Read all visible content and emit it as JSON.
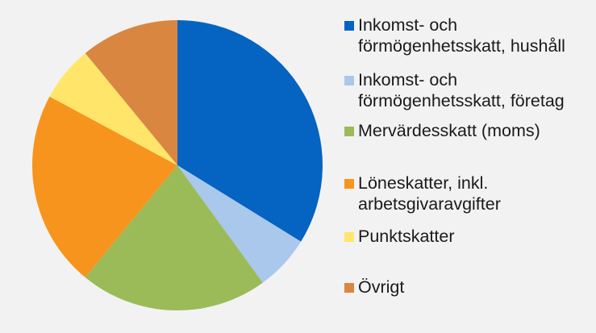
{
  "chart_data": {
    "type": "pie",
    "title": "",
    "start_angle_deg": 0,
    "direction": "clockwise",
    "legend_position": "right",
    "slices": [
      {
        "label": "Inkomst- och förmögenhetsskatt, hushåll",
        "value": 35.5,
        "color": "#0563c1"
      },
      {
        "label": "Inkomst- och förmögenhetsskatt, företag",
        "value": 6.5,
        "color": "#a9c8ec"
      },
      {
        "label": "Mervärdesskatt (moms)",
        "value": 22.0,
        "color": "#9bbb59"
      },
      {
        "label": "Löneskatter, inkl. arbetsgivaravgifter",
        "value": 23.0,
        "color": "#f7941d"
      },
      {
        "label": "Punktskatter",
        "value": 6.5,
        "color": "#ffe66b"
      },
      {
        "label": "Övrigt",
        "value": 11.5,
        "color": "#d98641"
      }
    ]
  },
  "legend": {
    "items": [
      {
        "label": "Inkomst- och\nförmögenhetsskatt, hushåll",
        "color": "#0563c1"
      },
      {
        "label": "Inkomst- och\nförmögenhetsskatt, företag",
        "color": "#a9c8ec"
      },
      {
        "label": "Mervärdesskatt (moms)",
        "color": "#9bbb59"
      },
      {
        "label": "Löneskatter, inkl.\narbetsgivaravgifter",
        "color": "#f7941d"
      },
      {
        "label": "Punktskatter",
        "color": "#ffe66b"
      },
      {
        "label": "Övrigt",
        "color": "#d98641"
      }
    ]
  }
}
